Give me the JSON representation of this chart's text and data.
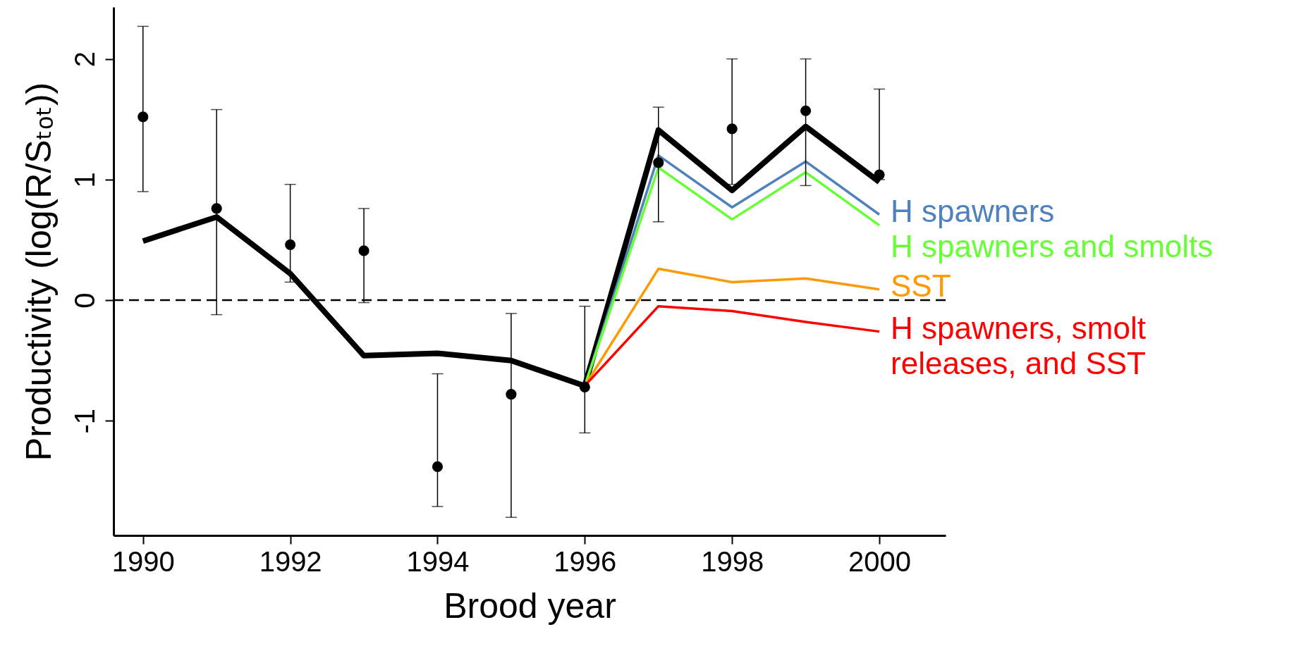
{
  "chart_data": {
    "type": "line",
    "xlabel": "Brood year",
    "ylabel": "Productivity (log(R/Sₜₒₜ))",
    "x": [
      1990,
      1991,
      1992,
      1993,
      1994,
      1995,
      1996,
      1997,
      1998,
      1999,
      2000
    ],
    "xlim": [
      1989.6,
      2000.9
    ],
    "xticks": [
      1990,
      1992,
      1994,
      1996,
      1998,
      2000
    ],
    "ylim": [
      -1.95,
      2.43
    ],
    "yticks": [
      -1,
      0,
      1,
      2
    ],
    "grid": false,
    "legend": false,
    "line_style": "solid",
    "series": [
      {
        "color": "#000000",
        "values": [
          0.49,
          0.69,
          0.22,
          -0.46,
          -0.44,
          -0.5,
          -0.71,
          1.41,
          0.91,
          1.44,
          0.98
        ]
      },
      {
        "type": "line",
        "name": "H spawners",
        "color": "#4f81bd",
        "x": [
          1996,
          1997,
          1998,
          1999,
          2000
        ],
        "values": [
          -0.71,
          1.2,
          0.77,
          1.15,
          0.71
        ]
      },
      {
        "type": "line",
        "name": "H spawners and smolts",
        "color": "#66ff33",
        "x": [
          1996,
          1997,
          1998,
          1999,
          2000
        ],
        "values": [
          -0.71,
          1.1,
          0.67,
          1.06,
          0.62
        ]
      },
      {
        "type": "line",
        "name": "SST",
        "color": "#ff9900",
        "x": [
          1996,
          1997,
          1998,
          1999,
          2000
        ],
        "values": [
          -0.71,
          0.26,
          0.15,
          0.18,
          0.09
        ]
      },
      {
        "type": "line",
        "name": "H spawners, smolt releases, and SST",
        "color": "#ff0000",
        "x": [
          1996,
          1997,
          1998,
          1999,
          2000
        ],
        "values": [
          -0.71,
          -0.05,
          -0.09,
          -0.18,
          -0.26
        ]
      },
      {
        "type": "scatter",
        "color": "#000000",
        "marker": "circle",
        "values": [
          1.52,
          0.76,
          0.46,
          0.41,
          -1.38,
          -0.78,
          -0.72,
          1.14,
          1.42,
          1.57,
          1.04
        ],
        "errors": [
          [
            0.9,
            2.27
          ],
          [
            -0.12,
            1.58
          ],
          [
            0.15,
            0.96
          ],
          [
            -0.02,
            0.76
          ],
          [
            -1.71,
            -0.61
          ],
          [
            -1.8,
            -0.11
          ],
          [
            -1.1,
            -0.05
          ],
          [
            0.65,
            1.6
          ],
          [
            0.96,
            2.0
          ],
          [
            0.95,
            2.0
          ],
          [
            1.0,
            1.75
          ]
        ]
      }
    ],
    "ref_lines": [
      {
        "axis": "y",
        "value": 0,
        "line_style": "dashed",
        "color": "#000000"
      }
    ]
  }
}
